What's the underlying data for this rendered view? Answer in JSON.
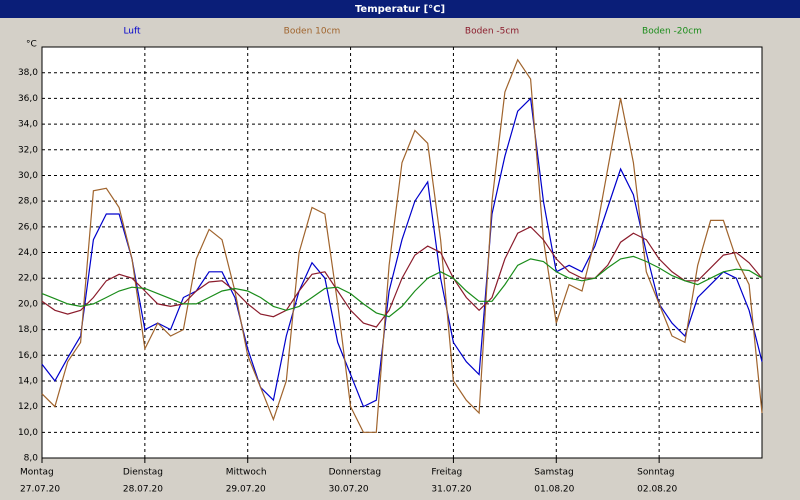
{
  "chart_data": {
    "type": "line",
    "title": "Temperatur [°C]",
    "y_label": "°C",
    "categories": [
      "Montag",
      null,
      null,
      null,
      null,
      null,
      null,
      null,
      "Dienstag",
      null,
      null,
      null,
      null,
      null,
      null,
      null,
      "Mittwoch",
      null,
      null,
      null,
      null,
      null,
      null,
      null,
      "Donnerstag",
      null,
      null,
      null,
      null,
      null,
      null,
      null,
      "Freitag",
      null,
      null,
      null,
      null,
      null,
      null,
      null,
      "Samstag",
      null,
      null,
      null,
      null,
      null,
      null,
      null,
      "Sonntag",
      null,
      null,
      null,
      null,
      null,
      null,
      null,
      null
    ],
    "dates": [
      "27.07.20",
      null,
      null,
      null,
      null,
      null,
      null,
      null,
      "28.07.20",
      null,
      null,
      null,
      null,
      null,
      null,
      null,
      "29.07.20",
      null,
      null,
      null,
      null,
      null,
      null,
      null,
      "30.07.20",
      null,
      null,
      null,
      null,
      null,
      null,
      null,
      "31.07.20",
      null,
      null,
      null,
      null,
      null,
      null,
      null,
      "01.08.20",
      null,
      null,
      null,
      null,
      null,
      null,
      null,
      "02.08.20",
      null,
      null,
      null,
      null,
      null,
      null,
      null,
      null
    ],
    "series": [
      {
        "name": "Luft",
        "color": "#0000cc",
        "values": [
          15.3,
          14.0,
          15.8,
          17.5,
          25.0,
          27.0,
          27.0,
          23.5,
          18.0,
          18.5,
          18.0,
          20.5,
          21.0,
          22.5,
          22.5,
          20.5,
          16.5,
          13.5,
          12.5,
          17.5,
          21.0,
          23.2,
          22.0,
          17.0,
          14.5,
          12.0,
          12.5,
          21.0,
          25.0,
          28.0,
          29.5,
          22.0,
          17.0,
          15.5,
          14.5,
          27.0,
          31.5,
          35.0,
          36.0,
          28.0,
          22.5,
          23.0,
          22.5,
          24.5,
          27.5,
          30.5,
          28.5,
          24.0,
          20.0,
          18.5,
          17.5,
          20.5,
          21.5,
          22.5,
          22.0,
          19.5,
          15.5
        ]
      },
      {
        "name": "Boden 10cm",
        "color": "#a0642d",
        "values": [
          13.0,
          12.0,
          15.5,
          17.0,
          28.8,
          29.0,
          27.5,
          23.5,
          16.5,
          18.5,
          17.5,
          18.0,
          23.5,
          25.8,
          25.0,
          21.0,
          16.0,
          13.5,
          11.0,
          14.0,
          24.0,
          27.5,
          27.0,
          20.0,
          12.0,
          10.0,
          10.0,
          23.0,
          31.0,
          33.5,
          32.5,
          25.0,
          14.0,
          12.5,
          11.5,
          28.0,
          36.5,
          39.0,
          37.5,
          25.0,
          18.5,
          21.5,
          21.0,
          25.0,
          30.5,
          36.0,
          31.0,
          22.5,
          20.0,
          17.5,
          17.0,
          23.0,
          26.5,
          26.5,
          23.5,
          21.5,
          11.5
        ]
      },
      {
        "name": "Boden -5cm",
        "color": "#8b1c2c",
        "values": [
          20.2,
          19.5,
          19.2,
          19.5,
          20.5,
          21.8,
          22.3,
          22.0,
          21.0,
          20.0,
          19.8,
          20.0,
          21.0,
          21.7,
          21.8,
          21.0,
          20.0,
          19.2,
          19.0,
          19.5,
          21.0,
          22.3,
          22.5,
          21.0,
          19.5,
          18.5,
          18.2,
          19.5,
          22.0,
          23.8,
          24.5,
          24.0,
          22.0,
          20.5,
          19.5,
          20.5,
          23.5,
          25.5,
          26.0,
          25.0,
          23.5,
          22.5,
          22.0,
          22.0,
          23.0,
          24.8,
          25.5,
          25.0,
          23.5,
          22.5,
          21.8,
          21.8,
          22.8,
          23.8,
          24.0,
          23.2,
          22.0
        ]
      },
      {
        "name": "Boden -20cm",
        "color": "#1a8c1a",
        "values": [
          20.8,
          20.4,
          20.0,
          19.8,
          20.0,
          20.5,
          21.0,
          21.3,
          21.2,
          20.8,
          20.4,
          20.0,
          20.0,
          20.5,
          21.0,
          21.2,
          21.0,
          20.5,
          19.8,
          19.5,
          19.8,
          20.5,
          21.2,
          21.3,
          20.8,
          20.0,
          19.3,
          19.0,
          19.8,
          21.0,
          22.0,
          22.5,
          22.0,
          21.0,
          20.2,
          20.2,
          21.5,
          23.0,
          23.5,
          23.3,
          22.5,
          22.0,
          21.8,
          22.0,
          22.8,
          23.5,
          23.7,
          23.3,
          22.8,
          22.2,
          21.8,
          21.5,
          22.0,
          22.5,
          22.7,
          22.6,
          22.0
        ]
      }
    ],
    "ylim": [
      8,
      40
    ],
    "yticks": [
      {
        "value": 8,
        "label": "8,0"
      },
      {
        "value": 10,
        "label": "10,0"
      },
      {
        "value": 12,
        "label": "12,0"
      },
      {
        "value": 14,
        "label": "14,0"
      },
      {
        "value": 16,
        "label": "16,0"
      },
      {
        "value": 18,
        "label": "18,0"
      },
      {
        "value": 20,
        "label": "20,0"
      },
      {
        "value": 22,
        "label": "22,0"
      },
      {
        "value": 24,
        "label": "24,0"
      },
      {
        "value": 26,
        "label": "26,0"
      },
      {
        "value": 28,
        "label": "28,0"
      },
      {
        "value": 30,
        "label": "30,0"
      },
      {
        "value": 32,
        "label": "32,0"
      },
      {
        "value": 34,
        "label": "34,0"
      },
      {
        "value": 36,
        "label": "36,0"
      },
      {
        "value": 38,
        "label": "38,0"
      }
    ],
    "grid": true
  }
}
